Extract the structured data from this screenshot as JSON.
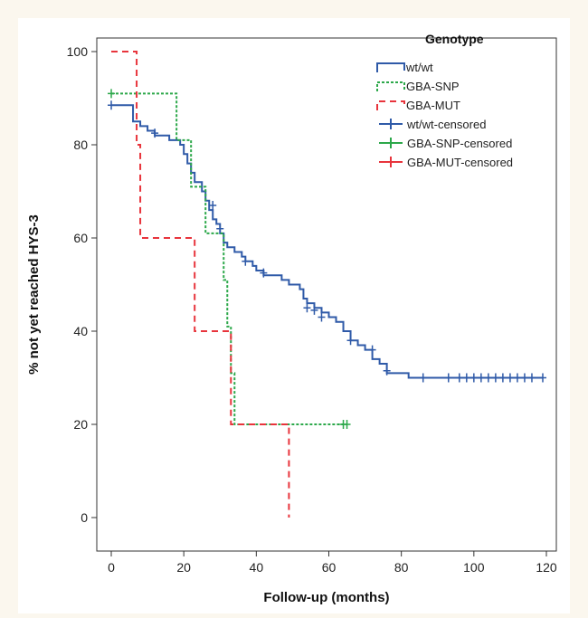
{
  "chart_data": {
    "type": "line",
    "subtype": "kaplan-meier step plot",
    "xlabel": "Follow-up (months)",
    "ylabel": "% not yet reached HYS-3",
    "xlim": [
      0,
      120
    ],
    "ylim": [
      0,
      100
    ],
    "xticks": [
      0,
      20,
      40,
      60,
      80,
      100,
      120
    ],
    "yticks": [
      0,
      20,
      40,
      60,
      80,
      100
    ],
    "grid": false,
    "legend": {
      "title": "Genotype",
      "placement": "top-right",
      "entries": [
        "wt/wt",
        "GBA-SNP",
        "GBA-MUT",
        "wt/wt-censored",
        "GBA-SNP-censored",
        "GBA-MUT-censored"
      ]
    },
    "series": [
      {
        "name": "wt/wt",
        "color": "#2f5aa8",
        "dash": "solid",
        "steps": [
          [
            0,
            88.5
          ],
          [
            6,
            85
          ],
          [
            8,
            84
          ],
          [
            10,
            83
          ],
          [
            12,
            82
          ],
          [
            16,
            81
          ],
          [
            19,
            80
          ],
          [
            20,
            78
          ],
          [
            21,
            76
          ],
          [
            22,
            74
          ],
          [
            23,
            72
          ],
          [
            25,
            70
          ],
          [
            26,
            68
          ],
          [
            27,
            66
          ],
          [
            28,
            64
          ],
          [
            29,
            63
          ],
          [
            30,
            61
          ],
          [
            31,
            59
          ],
          [
            32,
            58
          ],
          [
            34,
            57
          ],
          [
            36,
            56
          ],
          [
            37,
            55
          ],
          [
            39,
            54
          ],
          [
            40,
            53
          ],
          [
            42,
            52
          ],
          [
            47,
            51
          ],
          [
            49,
            50
          ],
          [
            52,
            49
          ],
          [
            53,
            47
          ],
          [
            54,
            46
          ],
          [
            56,
            45
          ],
          [
            58,
            44
          ],
          [
            60,
            43
          ],
          [
            62,
            42
          ],
          [
            64,
            40
          ],
          [
            66,
            38
          ],
          [
            68,
            37
          ],
          [
            70,
            36
          ],
          [
            72,
            34
          ],
          [
            74,
            33
          ],
          [
            76,
            31
          ],
          [
            82,
            30
          ],
          [
            119,
            30
          ]
        ],
        "censored": [
          [
            0,
            88.5
          ],
          [
            12,
            82.5
          ],
          [
            28,
            67
          ],
          [
            30,
            62
          ],
          [
            37,
            55
          ],
          [
            42,
            52.5
          ],
          [
            54,
            45
          ],
          [
            56,
            44.5
          ],
          [
            58,
            43
          ],
          [
            66,
            38
          ],
          [
            72,
            36
          ],
          [
            76,
            31.5
          ],
          [
            86,
            30
          ],
          [
            93,
            30
          ],
          [
            96,
            30
          ],
          [
            98,
            30
          ],
          [
            100,
            30
          ],
          [
            102,
            30
          ],
          [
            104,
            30
          ],
          [
            106,
            30
          ],
          [
            108,
            30
          ],
          [
            110,
            30
          ],
          [
            112,
            30
          ],
          [
            114,
            30
          ],
          [
            116,
            30
          ],
          [
            119,
            30
          ]
        ]
      },
      {
        "name": "GBA-SNP",
        "color": "#2ca84a",
        "dash": "dotted",
        "steps": [
          [
            0,
            91
          ],
          [
            18,
            81
          ],
          [
            22,
            71
          ],
          [
            26,
            61
          ],
          [
            31,
            51
          ],
          [
            32,
            41
          ],
          [
            33,
            31
          ],
          [
            34,
            20
          ],
          [
            65,
            20
          ]
        ],
        "censored": [
          [
            0,
            91
          ],
          [
            64,
            20
          ],
          [
            65,
            20
          ]
        ]
      },
      {
        "name": "GBA-MUT",
        "color": "#e8343c",
        "dash": "dashed",
        "steps": [
          [
            0,
            100
          ],
          [
            7,
            80
          ],
          [
            8,
            60
          ],
          [
            23,
            40
          ],
          [
            33,
            20
          ],
          [
            49,
            0
          ]
        ],
        "censored": []
      }
    ]
  }
}
